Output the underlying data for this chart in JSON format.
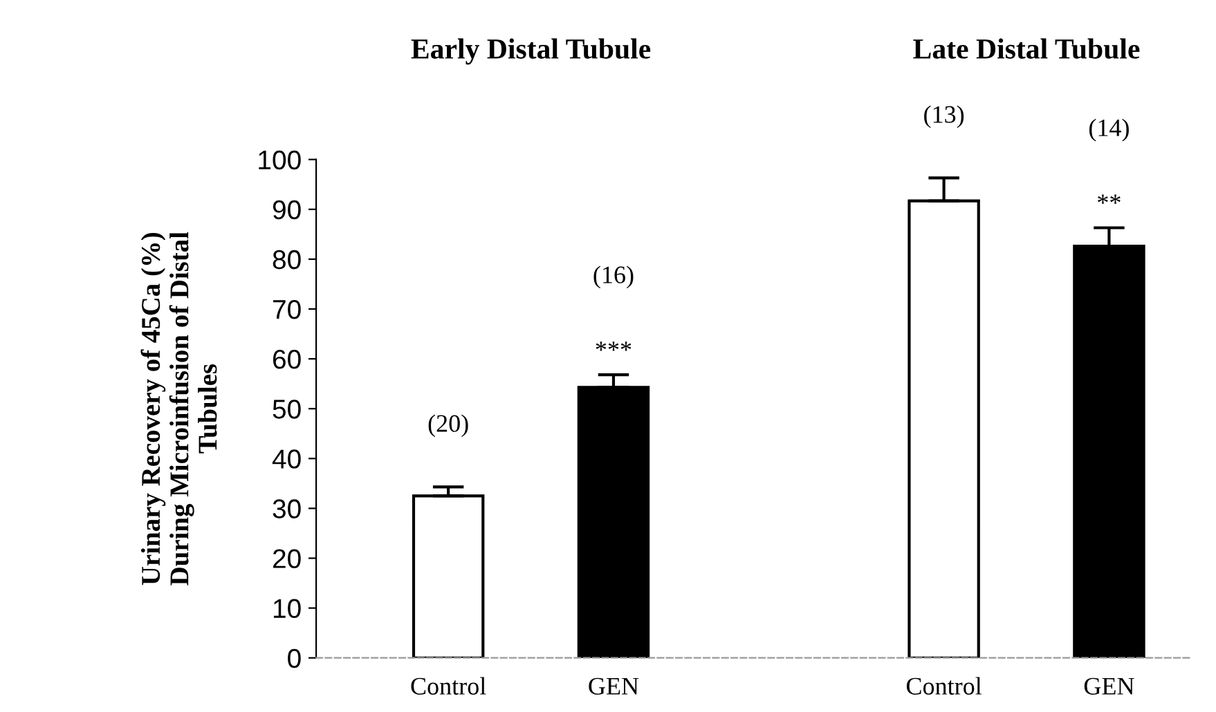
{
  "chart_data": {
    "type": "bar",
    "ylabel": "Urinary Recovery of 45Ca (%)\nDuring Microinfusion of Distal\nTubules",
    "categories": [
      "Control",
      "GEN",
      null,
      "Control",
      "GEN"
    ],
    "values": [
      32.5,
      54.3,
      null,
      91.7,
      82.6
    ],
    "errors": [
      1.8,
      2.5,
      null,
      4.6,
      3.7
    ],
    "colors": [
      "#ffffff",
      "#000000",
      "#ffffff",
      "#ffffff",
      "#000000"
    ],
    "value_labels": [
      null,
      "***",
      null,
      null,
      "**"
    ],
    "ylim": [
      0,
      100
    ],
    "yticks": [
      0,
      10,
      20,
      30,
      40,
      50,
      60,
      70,
      80,
      90,
      100
    ],
    "grid": false,
    "annotations": [
      "Early Distal Tubule",
      "Late Distal Tubule",
      "(20)",
      "(16)",
      "(13)",
      "(14)"
    ]
  }
}
